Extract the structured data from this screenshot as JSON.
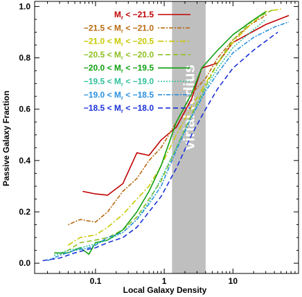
{
  "chart_data": {
    "type": "line",
    "xlabel": "Local Galaxy Density",
    "ylabel": "Passive Galaxy Fraction",
    "xscale": "log",
    "xlim": [
      0.013,
      90
    ],
    "ylim": [
      -0.04,
      1.02
    ],
    "x_ticks": [
      {
        "value": 0.1,
        "label": "0.1"
      },
      {
        "value": 1,
        "label": "1"
      },
      {
        "value": 10,
        "label": "10"
      }
    ],
    "y_ticks": [
      {
        "value": 0.0,
        "label": "0.0"
      },
      {
        "value": 0.2,
        "label": "0.2"
      },
      {
        "value": 0.4,
        "label": "0.4"
      },
      {
        "value": 0.6,
        "label": "0.6"
      },
      {
        "value": 0.8,
        "label": "0.8"
      },
      {
        "value": 1.0,
        "label": "1.0"
      }
    ],
    "band": {
      "x_range": [
        1.3,
        4.0
      ],
      "label": "virial radius",
      "color": "#bfbfbf"
    },
    "legend_position": "top-left",
    "series": [
      {
        "name": "M_r < −21.5",
        "label_parts": [
          "M",
          "r",
          " < −21.5"
        ],
        "color": "#c00000",
        "dash": "",
        "x": [
          0.065,
          0.1,
          0.15,
          0.25,
          0.4,
          0.6,
          0.9,
          1.5,
          2.5,
          3.5,
          6,
          10,
          30,
          65
        ],
        "y": [
          0.28,
          0.27,
          0.265,
          0.31,
          0.43,
          0.42,
          0.48,
          0.53,
          0.64,
          0.76,
          0.78,
          0.86,
          0.93,
          0.965
        ]
      },
      {
        "name": "−21.5 < M_r < −21.0",
        "label_parts": [
          "−21.5 < M",
          "r",
          " < −21.0"
        ],
        "color": "#b86a10",
        "dash": "2,2,6,2",
        "x": [
          0.04,
          0.06,
          0.1,
          0.15,
          0.25,
          0.4,
          0.6,
          0.9,
          1.5,
          2.5,
          4,
          6,
          10,
          18,
          32
        ],
        "y": [
          0.15,
          0.17,
          0.16,
          0.2,
          0.28,
          0.33,
          0.4,
          0.45,
          0.55,
          0.66,
          0.72,
          0.8,
          0.87,
          0.93,
          0.97
        ]
      },
      {
        "name": "−21.0 < M_r < −20.5",
        "label_parts": [
          "−21.0 < M",
          "r",
          " < −20.5"
        ],
        "color": "#c8c800",
        "dash": "8,3,2,3",
        "x": [
          0.04,
          0.06,
          0.1,
          0.15,
          0.25,
          0.4,
          0.6,
          0.9,
          1.5,
          2.5,
          4,
          6,
          10,
          18,
          30,
          50
        ],
        "y": [
          0.07,
          0.1,
          0.11,
          0.14,
          0.19,
          0.25,
          0.3,
          0.38,
          0.5,
          0.61,
          0.7,
          0.78,
          0.86,
          0.93,
          0.98,
          0.99
        ]
      },
      {
        "name": "−20.5 < M_r < −20.0",
        "label_parts": [
          "−20.5 < M",
          "r",
          " < −20.0"
        ],
        "color": "#8ec020",
        "dash": "7,4",
        "x": [
          0.03,
          0.04,
          0.06,
          0.1,
          0.15,
          0.25,
          0.4,
          0.6,
          0.9,
          1.5,
          2.5,
          4,
          6,
          10,
          20,
          40
        ],
        "y": [
          0.035,
          0.05,
          0.08,
          0.09,
          0.1,
          0.13,
          0.18,
          0.25,
          0.32,
          0.45,
          0.58,
          0.69,
          0.78,
          0.87,
          0.95,
          0.99
        ]
      },
      {
        "name": "−20.0 < M_r < −19.5",
        "label_parts": [
          "−20.0 < M",
          "r",
          " < −19.5"
        ],
        "color": "#10a010",
        "dash": "",
        "x": [
          0.025,
          0.04,
          0.06,
          0.08,
          0.1,
          0.15,
          0.25,
          0.4,
          0.6,
          0.9,
          1.5,
          2.5,
          3.5,
          6,
          10,
          18,
          30
        ],
        "y": [
          0.04,
          0.04,
          0.06,
          0.035,
          0.08,
          0.09,
          0.13,
          0.2,
          0.28,
          0.38,
          0.55,
          0.66,
          0.76,
          0.83,
          0.89,
          0.94,
          0.98
        ]
      },
      {
        "name": "−19.5 < M_r < −19.0",
        "label_parts": [
          "−19.5 < M",
          "r",
          " < −19.0"
        ],
        "color": "#2ec09a",
        "dash": "2,2",
        "x": [
          0.025,
          0.04,
          0.06,
          0.1,
          0.15,
          0.25,
          0.4,
          0.6,
          0.9,
          1.5,
          2.5,
          4,
          6,
          10,
          18,
          30
        ],
        "y": [
          0.03,
          0.05,
          0.06,
          0.075,
          0.09,
          0.12,
          0.17,
          0.24,
          0.33,
          0.45,
          0.57,
          0.68,
          0.76,
          0.84,
          0.9,
          0.95
        ]
      },
      {
        "name": "−19.0 < M_r < −18.5",
        "label_parts": [
          "−19.0 < M",
          "r",
          " < −18.5"
        ],
        "color": "#2a90e0",
        "dash": "6,2,2,2",
        "x": [
          0.02,
          0.03,
          0.05,
          0.08,
          0.1,
          0.15,
          0.25,
          0.4,
          0.6,
          0.9,
          1.5,
          2.5,
          4,
          6,
          10,
          20,
          40,
          65
        ],
        "y": [
          0.01,
          0.03,
          0.05,
          0.06,
          0.07,
          0.1,
          0.12,
          0.17,
          0.23,
          0.3,
          0.44,
          0.57,
          0.67,
          0.74,
          0.82,
          0.88,
          0.92,
          0.94
        ]
      },
      {
        "name": "−18.5 < M_r < −18.0",
        "label_parts": [
          "−18.5 < M",
          "r",
          " < −18.0"
        ],
        "color": "#1830d8",
        "dash": "7,4",
        "x": [
          0.017,
          0.03,
          0.05,
          0.08,
          0.1,
          0.15,
          0.25,
          0.4,
          0.6,
          0.9,
          1.5,
          2.5,
          4,
          6,
          10,
          20,
          45
        ],
        "y": [
          0.01,
          0.02,
          0.04,
          0.055,
          0.06,
          0.08,
          0.1,
          0.14,
          0.2,
          0.26,
          0.37,
          0.5,
          0.6,
          0.68,
          0.76,
          0.83,
          0.9
        ]
      }
    ]
  }
}
